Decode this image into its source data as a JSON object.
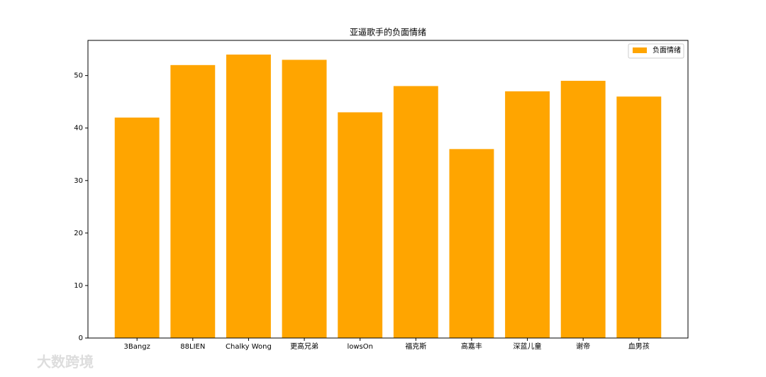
{
  "chart_data": {
    "type": "bar",
    "title": "亚逼歌手的负面情绪",
    "categories": [
      "3Bangz",
      "88LIEN",
      "Chalky Wong",
      "更高兄弟",
      "lowsOn",
      "福克斯",
      "高嘉丰",
      "深蓝儿童",
      "谢帝",
      "血男孩"
    ],
    "series": [
      {
        "name": "负面情绪",
        "color": "#ffa500",
        "values": [
          42,
          52,
          54,
          53,
          43,
          48,
          36,
          47,
          49,
          46
        ]
      }
    ],
    "ylim": [
      0,
      56.7
    ],
    "yticks": [
      0,
      10,
      20,
      30,
      40,
      50
    ],
    "grid": false,
    "legend": "upper right"
  },
  "watermark": "大数跨境"
}
